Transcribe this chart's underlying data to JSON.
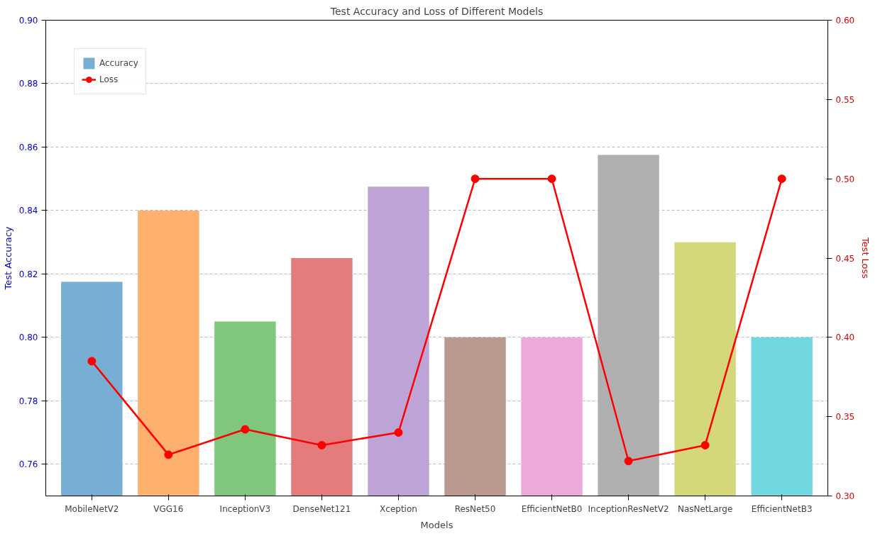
{
  "chart_data": {
    "type": "bar",
    "title": "Test Accuracy and Loss of Different Models",
    "xlabel": "Models",
    "ylabel": "Test Accuracy",
    "y2label": "Test Loss",
    "categories": [
      "MobileNetV2",
      "VGG16",
      "InceptionV3",
      "DenseNet121",
      "Xception",
      "ResNet50",
      "EfficientNetB0",
      "InceptionResNetV2",
      "NasNetLarge",
      "EfficientNetB3"
    ],
    "series": [
      {
        "name": "Accuracy",
        "colors": [
          "#78aed3",
          "#feb06f",
          "#80c67d",
          "#e47c7d",
          "#bea3d6",
          "#b9998f",
          "#ecaad9",
          "#b0b0b0",
          "#d4d77a",
          "#71d8e2"
        ],
        "values": [
          0.8175,
          0.84,
          0.805,
          0.825,
          0.8475,
          0.8,
          0.8,
          0.8575,
          0.83,
          0.8
        ]
      },
      {
        "name": "Loss",
        "type": "line",
        "axis": "y2",
        "color": "#ff0000",
        "values": [
          0.385,
          0.326,
          0.342,
          0.332,
          0.34,
          0.5,
          0.5,
          0.322,
          0.332,
          0.5
        ]
      }
    ],
    "ylim": [
      0.75,
      0.9
    ],
    "yticks": [
      {
        "value": 0.76,
        "label": "0.76"
      },
      {
        "value": 0.78,
        "label": "0.78"
      },
      {
        "value": 0.8,
        "label": "0.80"
      },
      {
        "value": 0.82,
        "label": "0.82"
      },
      {
        "value": 0.84,
        "label": "0.84"
      },
      {
        "value": 0.86,
        "label": "0.86"
      },
      {
        "value": 0.88,
        "label": "0.88"
      },
      {
        "value": 0.9,
        "label": "0.90"
      }
    ],
    "y2lim": [
      0.3,
      0.6
    ],
    "y2ticks": [
      {
        "value": 0.3,
        "label": "0.30"
      },
      {
        "value": 0.35,
        "label": "0.35"
      },
      {
        "value": 0.4,
        "label": "0.40"
      },
      {
        "value": 0.45,
        "label": "0.45"
      },
      {
        "value": 0.5,
        "label": "0.50"
      },
      {
        "value": 0.55,
        "label": "0.55"
      },
      {
        "value": 0.6,
        "label": "0.60"
      }
    ],
    "grid": "y",
    "legend": "top left",
    "marker": "circle",
    "line_style": "solid"
  }
}
